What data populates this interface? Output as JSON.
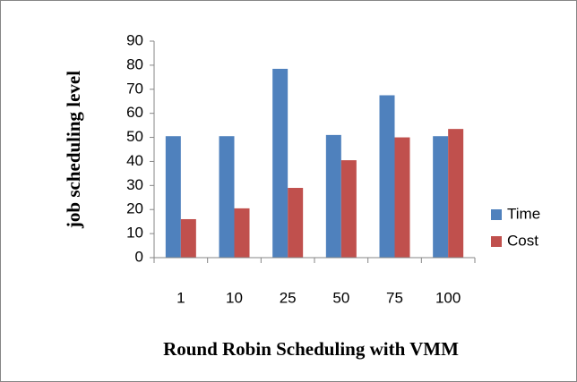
{
  "chart_data": {
    "type": "bar",
    "ylabel": "job scheduling level",
    "xlabel": "Round Robin Scheduling with VMM",
    "categories": [
      "1",
      "10",
      "25",
      "50",
      "75",
      "100"
    ],
    "series": [
      {
        "name": "Time",
        "color": "#4f81bd",
        "values": [
          50.5,
          50.5,
          78.5,
          51,
          67.5,
          50.5
        ]
      },
      {
        "name": "Cost",
        "color": "#c0504d",
        "values": [
          16,
          20.5,
          29,
          40.5,
          50,
          53.5
        ]
      }
    ],
    "ylim": [
      0,
      90
    ],
    "yticks": [
      0,
      10,
      20,
      30,
      40,
      50,
      60,
      70,
      80,
      90
    ],
    "grid": false,
    "legend": "right"
  }
}
